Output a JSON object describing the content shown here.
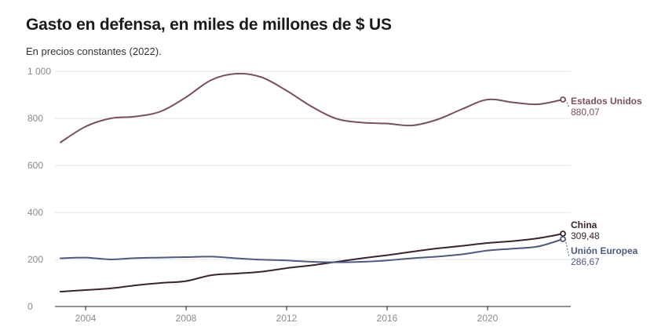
{
  "title": "Gasto en defensa, en miles de millones de $ US",
  "subtitle": "En precios constantes (2022).",
  "chart_data": {
    "type": "line",
    "title": "Gasto en defensa, en miles de millones de $ US",
    "subtitle": "En precios constantes (2022).",
    "xlabel": "",
    "ylabel": "",
    "xlim": [
      2003,
      2023
    ],
    "ylim": [
      0,
      1000
    ],
    "x_ticks": [
      2004,
      2008,
      2012,
      2016,
      2020
    ],
    "y_ticks": [
      0,
      200,
      400,
      600,
      800,
      1000
    ],
    "y_tick_labels": [
      "0",
      "200",
      "400",
      "600",
      "800",
      "1 000"
    ],
    "grid": true,
    "x": [
      2003,
      2004,
      2005,
      2006,
      2007,
      2008,
      2009,
      2010,
      2011,
      2012,
      2013,
      2014,
      2015,
      2016,
      2017,
      2018,
      2019,
      2020,
      2021,
      2022,
      2023
    ],
    "series": [
      {
        "name": "Estados Unidos",
        "value_label": "880,07",
        "color": "#7a4f5f",
        "values": [
          698,
          765,
          800,
          808,
          830,
          890,
          963,
          990,
          975,
          918,
          850,
          798,
          782,
          778,
          770,
          795,
          840,
          880,
          868,
          860,
          880.07
        ]
      },
      {
        "name": "China",
        "value_label": "309,48",
        "color": "#3d2230",
        "values": [
          63,
          70,
          77,
          90,
          100,
          108,
          133,
          140,
          148,
          163,
          175,
          190,
          205,
          218,
          233,
          247,
          258,
          270,
          278,
          290,
          309.48
        ]
      },
      {
        "name": "Unión Europea",
        "value_label": "286,67",
        "color": "#4e5a84",
        "values": [
          205,
          208,
          200,
          206,
          208,
          210,
          212,
          205,
          199,
          196,
          190,
          188,
          190,
          196,
          205,
          212,
          222,
          238,
          246,
          255,
          286.67
        ]
      }
    ]
  }
}
